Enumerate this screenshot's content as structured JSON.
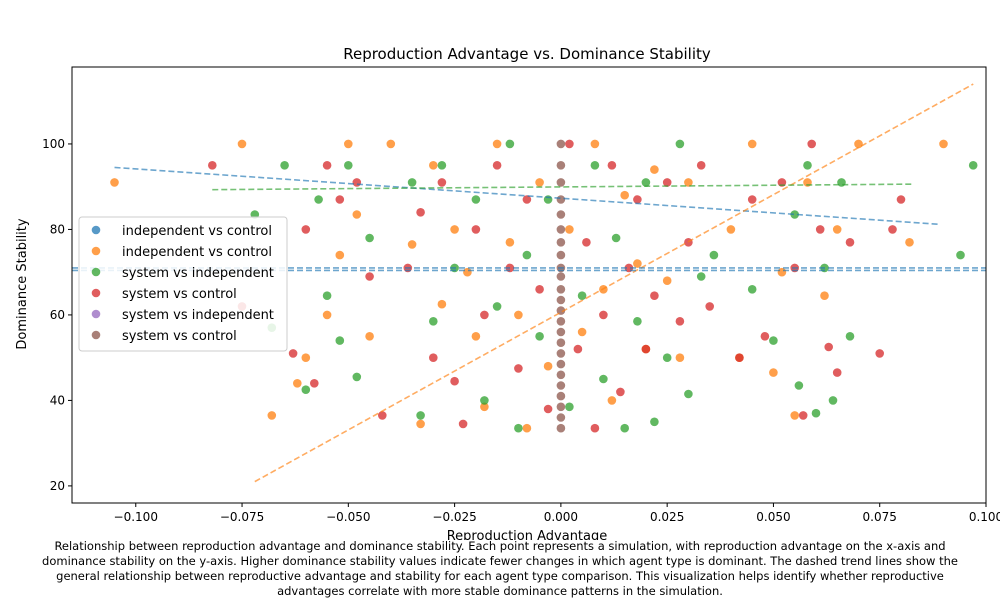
{
  "chart_data": {
    "type": "scatter",
    "title": "Reproduction Advantage vs. Dominance Stability",
    "xlabel": "Reproduction Advantage",
    "ylabel": "Dominance Stability",
    "xlim": [
      -0.115,
      0.1
    ],
    "ylim": [
      16,
      118
    ],
    "xticks": [
      -0.1,
      -0.075,
      -0.05,
      -0.025,
      0.0,
      0.025,
      0.05,
      0.075,
      0.1
    ],
    "xtick_labels": [
      "−0.100",
      "−0.075",
      "−0.050",
      "−0.025",
      "0.000",
      "0.025",
      "0.050",
      "0.075",
      "0.100"
    ],
    "yticks": [
      20,
      40,
      60,
      80,
      100
    ],
    "ytick_labels": [
      "20",
      "40",
      "60",
      "80",
      "100"
    ],
    "legend_position": "center-left",
    "legend": [
      {
        "label": "independent vs control",
        "color": "#1f77b4"
      },
      {
        "label": "independent vs control",
        "color": "#ff7f0e"
      },
      {
        "label": "system vs independent",
        "color": "#2ca02c"
      },
      {
        "label": "system vs control",
        "color": "#d62728"
      },
      {
        "label": "system vs independent",
        "color": "#9467bd"
      },
      {
        "label": "system vs control",
        "color": "#8c564b"
      }
    ],
    "series": [
      {
        "name": "independent vs control",
        "color": "#ff7f0e",
        "points": [
          [
            -0.105,
            91
          ],
          [
            -0.075,
            100
          ],
          [
            -0.068,
            36.5
          ],
          [
            -0.062,
            44
          ],
          [
            -0.06,
            50
          ],
          [
            -0.055,
            60
          ],
          [
            -0.052,
            74
          ],
          [
            -0.05,
            100
          ],
          [
            -0.048,
            83.5
          ],
          [
            -0.045,
            55
          ],
          [
            -0.04,
            100
          ],
          [
            -0.035,
            76.5
          ],
          [
            -0.033,
            34.5
          ],
          [
            -0.03,
            95
          ],
          [
            -0.028,
            62.5
          ],
          [
            -0.025,
            80
          ],
          [
            -0.022,
            70
          ],
          [
            -0.02,
            55
          ],
          [
            -0.018,
            38.5
          ],
          [
            -0.015,
            100
          ],
          [
            -0.012,
            77
          ],
          [
            -0.01,
            60
          ],
          [
            -0.008,
            33.5
          ],
          [
            -0.005,
            91
          ],
          [
            -0.003,
            48
          ],
          [
            0.002,
            80
          ],
          [
            0.005,
            56
          ],
          [
            0.008,
            100
          ],
          [
            0.01,
            66
          ],
          [
            0.012,
            40
          ],
          [
            0.015,
            88
          ],
          [
            0.018,
            72
          ],
          [
            0.02,
            52
          ],
          [
            0.022,
            94
          ],
          [
            0.025,
            68
          ],
          [
            0.028,
            50
          ],
          [
            0.03,
            91
          ],
          [
            0.04,
            80
          ],
          [
            0.042,
            50
          ],
          [
            0.045,
            100
          ],
          [
            0.05,
            46.5
          ],
          [
            0.052,
            70
          ],
          [
            0.055,
            36.5
          ],
          [
            0.058,
            91
          ],
          [
            0.062,
            64.5
          ],
          [
            0.065,
            80
          ],
          [
            0.07,
            100
          ],
          [
            0.082,
            77
          ],
          [
            0.09,
            100
          ]
        ]
      },
      {
        "name": "system vs independent",
        "color": "#2ca02c",
        "points": [
          [
            -0.072,
            83.5
          ],
          [
            -0.068,
            57
          ],
          [
            -0.065,
            95
          ],
          [
            -0.06,
            42.5
          ],
          [
            -0.057,
            87
          ],
          [
            -0.055,
            64.5
          ],
          [
            -0.052,
            54
          ],
          [
            -0.05,
            95
          ],
          [
            -0.048,
            45.5
          ],
          [
            -0.045,
            78
          ],
          [
            -0.035,
            91
          ],
          [
            -0.033,
            36.5
          ],
          [
            -0.03,
            58.5
          ],
          [
            -0.028,
            95
          ],
          [
            -0.025,
            71
          ],
          [
            -0.02,
            87
          ],
          [
            -0.018,
            40
          ],
          [
            -0.015,
            62
          ],
          [
            -0.012,
            100
          ],
          [
            -0.01,
            33.5
          ],
          [
            -0.008,
            74
          ],
          [
            -0.005,
            55
          ],
          [
            -0.003,
            87
          ],
          [
            0.002,
            38.5
          ],
          [
            0.005,
            64.5
          ],
          [
            0.008,
            95
          ],
          [
            0.01,
            45
          ],
          [
            0.013,
            78
          ],
          [
            0.015,
            33.5
          ],
          [
            0.018,
            58.5
          ],
          [
            0.02,
            91
          ],
          [
            0.022,
            35
          ],
          [
            0.025,
            50
          ],
          [
            0.028,
            100
          ],
          [
            0.03,
            41.5
          ],
          [
            0.033,
            69
          ],
          [
            0.036,
            74
          ],
          [
            0.045,
            66
          ],
          [
            0.05,
            54
          ],
          [
            0.055,
            83.5
          ],
          [
            0.056,
            43.5
          ],
          [
            0.058,
            95
          ],
          [
            0.06,
            37
          ],
          [
            0.062,
            71
          ],
          [
            0.064,
            40
          ],
          [
            0.066,
            91
          ],
          [
            0.068,
            55
          ],
          [
            0.094,
            74
          ],
          [
            0.097,
            95
          ]
        ]
      },
      {
        "name": "system vs control",
        "color": "#d62728",
        "points": [
          [
            -0.082,
            95
          ],
          [
            -0.075,
            62
          ],
          [
            -0.063,
            51
          ],
          [
            -0.06,
            80
          ],
          [
            -0.058,
            44
          ],
          [
            -0.055,
            95
          ],
          [
            -0.052,
            87
          ],
          [
            -0.048,
            91
          ],
          [
            -0.045,
            69
          ],
          [
            -0.042,
            36.5
          ],
          [
            -0.036,
            71
          ],
          [
            -0.033,
            84
          ],
          [
            -0.03,
            50
          ],
          [
            -0.028,
            91
          ],
          [
            -0.025,
            44.5
          ],
          [
            -0.023,
            34.5
          ],
          [
            -0.02,
            80
          ],
          [
            -0.018,
            60
          ],
          [
            -0.015,
            95
          ],
          [
            -0.012,
            71
          ],
          [
            -0.01,
            47.5
          ],
          [
            -0.008,
            87
          ],
          [
            -0.005,
            66
          ],
          [
            -0.003,
            38
          ],
          [
            0.002,
            100
          ],
          [
            0.004,
            52
          ],
          [
            0.006,
            77
          ],
          [
            0.008,
            33.5
          ],
          [
            0.01,
            60
          ],
          [
            0.012,
            95
          ],
          [
            0.014,
            42
          ],
          [
            0.016,
            71
          ],
          [
            0.018,
            87
          ],
          [
            0.02,
            52
          ],
          [
            0.022,
            64.5
          ],
          [
            0.025,
            91
          ],
          [
            0.028,
            58.5
          ],
          [
            0.03,
            77
          ],
          [
            0.033,
            95
          ],
          [
            0.035,
            62
          ],
          [
            0.042,
            50
          ],
          [
            0.045,
            87
          ],
          [
            0.048,
            55
          ],
          [
            0.052,
            91
          ],
          [
            0.055,
            71
          ],
          [
            0.057,
            36.5
          ],
          [
            0.059,
            100
          ],
          [
            0.061,
            80
          ],
          [
            0.063,
            52.5
          ],
          [
            0.065,
            46.5
          ],
          [
            0.068,
            77
          ],
          [
            0.075,
            51
          ],
          [
            0.078,
            80
          ],
          [
            0.08,
            87
          ]
        ]
      },
      {
        "name": "system vs control",
        "color": "#8c564b",
        "points": [
          [
            0,
            33.5
          ],
          [
            0,
            36
          ],
          [
            0,
            38.5
          ],
          [
            0,
            41
          ],
          [
            0,
            43.5
          ],
          [
            0,
            46
          ],
          [
            0,
            48.5
          ],
          [
            0,
            51
          ],
          [
            0,
            53.5
          ],
          [
            0,
            56
          ],
          [
            0,
            58.5
          ],
          [
            0,
            61
          ],
          [
            0,
            63.5
          ],
          [
            0,
            66
          ],
          [
            0,
            69
          ],
          [
            0,
            71
          ],
          [
            0,
            74
          ],
          [
            0,
            77
          ],
          [
            0,
            80
          ],
          [
            0,
            83.5
          ],
          [
            0,
            87
          ],
          [
            0,
            91
          ],
          [
            0,
            95
          ],
          [
            0,
            100
          ]
        ]
      }
    ],
    "trend_lines": [
      {
        "name": "independent vs control",
        "color": "#1f77b4",
        "style": "dashed",
        "from": [
          -0.105,
          94.5
        ],
        "to": [
          0.089,
          81.2
        ]
      },
      {
        "name": "independent vs control",
        "color": "#ff7f0e",
        "style": "dashed",
        "from": [
          -0.072,
          21
        ],
        "to": [
          0.097,
          114
        ]
      },
      {
        "name": "system vs independent",
        "color": "#2ca02c",
        "style": "dashed",
        "from": [
          -0.082,
          89.3
        ],
        "to": [
          0.083,
          90.6
        ]
      },
      {
        "name": "system vs independent",
        "color": "#1f77b4",
        "style": "dashed",
        "from": [
          -0.115,
          71
        ],
        "to": [
          0.1,
          71
        ]
      },
      {
        "name": "system vs control",
        "color": "#1f77b4",
        "style": "dashed",
        "from": [
          -0.115,
          70.4
        ],
        "to": [
          0.1,
          70.4
        ]
      }
    ]
  },
  "caption_lines": [
    "Relationship between reproduction advantage and dominance stability. Each point represents a simulation, with reproduction advantage on the x-axis and",
    "dominance stability on the y-axis. Higher dominance stability values indicate fewer changes in which agent type is dominant. The dashed trend lines show the",
    "general relationship between reproductive advantage and stability for each agent type comparison. This visualization helps identify whether reproductive",
    "advantages correlate with more stable dominance patterns in the simulation."
  ]
}
